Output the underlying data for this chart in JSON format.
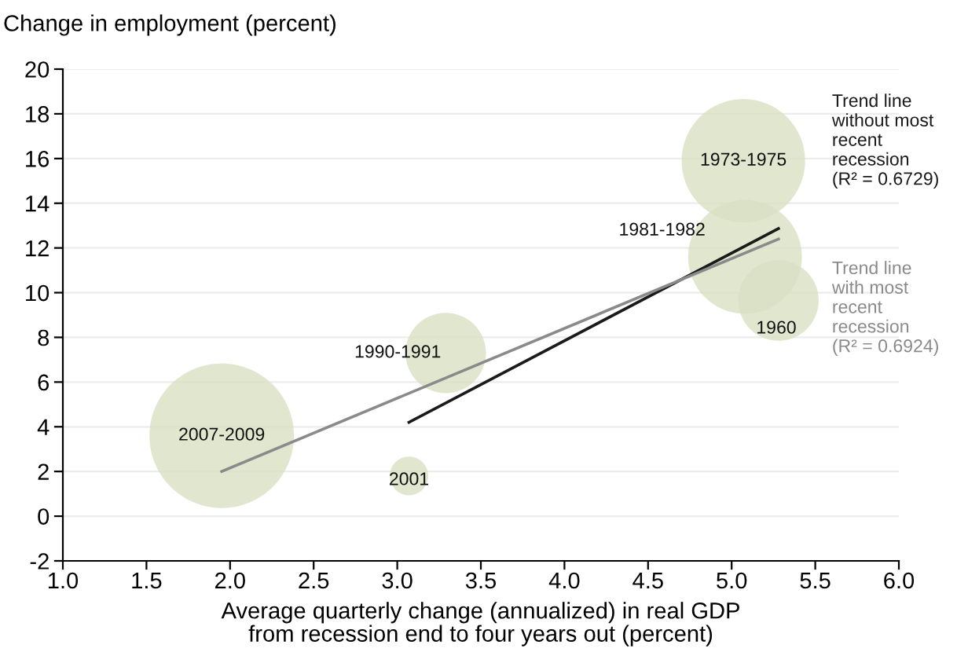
{
  "chart_data": {
    "type": "bubble",
    "ylabel": "Change in employment (percent)",
    "xlabel": "Average quarterly change (annualized) in real GDP\nfrom recession end to four years out (percent)",
    "series": [
      {
        "color": "#d9e0c3",
        "x": [
          1.95,
          3.07,
          3.29,
          5.07,
          5.08,
          5.28
        ],
        "values": [
          3.6,
          1.8,
          7.3,
          15.9,
          11.6,
          9.65
        ],
        "sizes": [
          1,
          0.071,
          0.31,
          0.73,
          0.62,
          0.31
        ]
      },
      {
        "type": "line",
        "name": "Trend line\nwithout most\nrecent\nrecession\n(R² = 0.6729)",
        "color": "#1a1a1a",
        "x": [
          3.07,
          5.28
        ],
        "values": [
          4.2,
          12.87
        ]
      },
      {
        "type": "line",
        "name": "Trend line\nwith most\nrecent\nrecession\n(R² = 0.6924)",
        "color": "#8a8a8a",
        "x": [
          1.95,
          5.28
        ],
        "values": [
          2.0,
          12.4
        ]
      }
    ],
    "annotations": [
      {
        "text": "2007-2009",
        "x": 1.95,
        "y": 3.6
      },
      {
        "text": "2001",
        "x": 3.07,
        "y": 1.8
      },
      {
        "text": "1990-1991",
        "x": 3.29,
        "y": 7.3
      },
      {
        "text": "1973-1975",
        "x": 5.07,
        "y": 15.9
      },
      {
        "text": "1981-1982",
        "x": 5.08,
        "y": 11.6
      },
      {
        "text": "1960",
        "x": 5.28,
        "y": 9.65
      }
    ],
    "xlim": [
      1.0,
      6.0
    ],
    "xticks": [
      {
        "value": 1.0,
        "label": "1.0"
      },
      {
        "value": 1.5,
        "label": "1.5"
      },
      {
        "value": 2.0,
        "label": "2.0"
      },
      {
        "value": 2.5,
        "label": "2.5"
      },
      {
        "value": 3.0,
        "label": "3.0"
      },
      {
        "value": 3.5,
        "label": "3.5"
      },
      {
        "value": 4.0,
        "label": "4.0"
      },
      {
        "value": 4.5,
        "label": "4.5"
      },
      {
        "value": 5.0,
        "label": "5.0"
      },
      {
        "value": 5.5,
        "label": "5.5"
      },
      {
        "value": 6.0,
        "label": "6.0"
      }
    ],
    "ylim": [
      -2,
      20
    ],
    "yticks": [
      -2,
      0,
      2,
      4,
      6,
      8,
      10,
      12,
      14,
      16,
      18,
      20
    ],
    "grid": "y"
  }
}
